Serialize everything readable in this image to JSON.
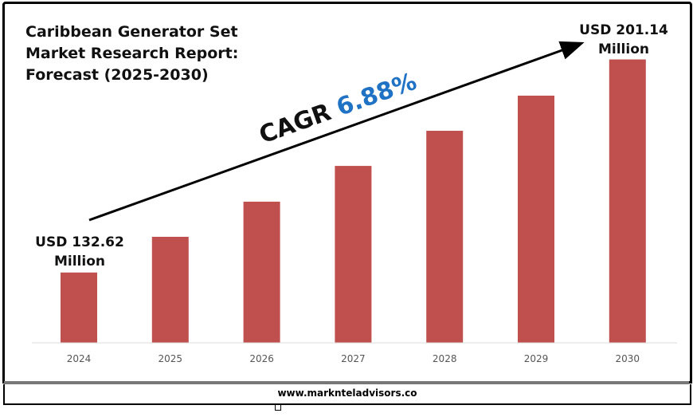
{
  "chart_data": {
    "type": "bar",
    "title": "Caribbean Generator Set Market Research Report: Forecast (2025-2030)",
    "categories": [
      "2024",
      "2025",
      "2026",
      "2027",
      "2028",
      "2029",
      "2030"
    ],
    "values": [
      132.62,
      144.1,
      155.4,
      166.9,
      178.2,
      189.5,
      201.14
    ],
    "ylim": [
      110,
      210
    ],
    "xlabel": "",
    "ylabel": "",
    "bar_color": "#c0504d",
    "annotations": {
      "start_line1": "USD 132.62",
      "start_line2": "Million",
      "end_line1": "USD 201.14",
      "end_line2": "Million",
      "cagr_label": "CAGR",
      "cagr_value": "6.88%",
      "cagr_color": "#1f72c4"
    }
  },
  "title_lines": [
    "Caribbean Generator Set",
    "Market Research Report:",
    "Forecast (2025-2030)"
  ],
  "footer": "www.marknteladvisors.co"
}
